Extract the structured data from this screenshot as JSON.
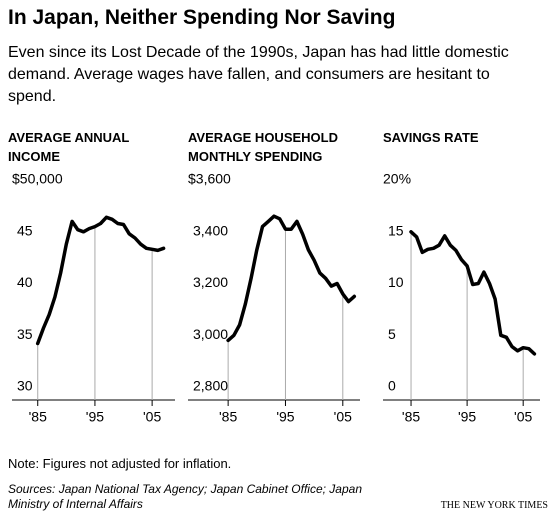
{
  "title": "In Japan, Neither Spending Nor Saving",
  "subtitle": "Even since its Lost Decade of the 1990s, Japan has had little domestic demand. Average wages have fallen, and consumers are hesitant to spend.",
  "note": "Note: Figures not adjusted for inflation.",
  "sources": "Sources: Japan National Tax Agency; Japan Cabinet Office; Japan Ministry of Internal Affairs",
  "credit": "THE NEW YORK TIMES",
  "chart_data": [
    {
      "type": "line",
      "title": "AVERAGE ANNUAL INCOME",
      "color": "#000000",
      "x": [
        1985,
        1986,
        1987,
        1988,
        1989,
        1990,
        1991,
        1992,
        1993,
        1994,
        1995,
        1996,
        1997,
        1998,
        1999,
        2000,
        2001,
        2002,
        2003,
        2004,
        2005,
        2006,
        2007
      ],
      "values": [
        34.2,
        35.7,
        37,
        38.7,
        41,
        43.8,
        46,
        45.2,
        45,
        45.3,
        45.5,
        45.8,
        46.4,
        46.2,
        45.8,
        45.7,
        44.8,
        44.4,
        43.8,
        43.4,
        43.3,
        43.2,
        43.4
      ],
      "xlim": [
        1980.5,
        2009
      ],
      "ylim": [
        30,
        50
      ],
      "xticks": [
        {
          "value": 1985,
          "label": "'85"
        },
        {
          "value": 1995,
          "label": "'95"
        },
        {
          "value": 2005,
          "label": "'05"
        }
      ],
      "yticks": [
        30,
        35,
        40,
        45,
        {
          "value": 50,
          "label": "$50,000"
        }
      ]
    },
    {
      "type": "line",
      "title": "AVERAGE HOUSEHOLD MONTHLY SPENDING",
      "color": "#000000",
      "x": [
        1985,
        1986,
        1987,
        1988,
        1989,
        1990,
        1991,
        1992,
        1993,
        1994,
        1995,
        1996,
        1997,
        1998,
        1999,
        2000,
        2001,
        2002,
        2003,
        2004,
        2005,
        2006,
        2007
      ],
      "values": [
        2980,
        3000,
        3040,
        3120,
        3220,
        3330,
        3420,
        3440,
        3460,
        3450,
        3410,
        3410,
        3440,
        3390,
        3330,
        3290,
        3240,
        3220,
        3190,
        3200,
        3160,
        3130,
        3150
      ],
      "xlim": [
        1978,
        2008
      ],
      "ylim": [
        2800,
        3600
      ],
      "xticks": [
        {
          "value": 1985,
          "label": "'85"
        },
        {
          "value": 1995,
          "label": "'95"
        },
        {
          "value": 2005,
          "label": "'05"
        }
      ],
      "yticks": [
        {
          "value": 2800,
          "label": "2,800"
        },
        {
          "value": 3000,
          "label": "3,000"
        },
        {
          "value": 3200,
          "label": "3,200"
        },
        {
          "value": 3400,
          "label": "3,400"
        },
        {
          "value": 3600,
          "label": "$3,600"
        }
      ]
    },
    {
      "type": "line",
      "title": "SAVINGS RATE",
      "color": "#000000",
      "x": [
        1985,
        1986,
        1987,
        1988,
        1989,
        1990,
        1991,
        1992,
        1993,
        1994,
        1995,
        1996,
        1997,
        1998,
        1999,
        2000,
        2001,
        2002,
        2003,
        2004,
        2005,
        2006,
        2007
      ],
      "values": [
        15,
        14.5,
        13,
        13.3,
        13.4,
        13.7,
        14.6,
        13.7,
        13.2,
        12.3,
        11.7,
        9.9,
        10,
        11.1,
        10,
        8.5,
        5,
        4.8,
        3.9,
        3.5,
        3.8,
        3.7,
        3.2
      ],
      "xlim": [
        1980,
        2008
      ],
      "ylim": [
        0,
        20
      ],
      "xticks": [
        {
          "value": 1985,
          "label": "'85"
        },
        {
          "value": 1995,
          "label": "'95"
        },
        {
          "value": 2005,
          "label": "'05"
        }
      ],
      "yticks": [
        0,
        5,
        10,
        15,
        {
          "value": 20,
          "label": "20%"
        }
      ]
    }
  ]
}
